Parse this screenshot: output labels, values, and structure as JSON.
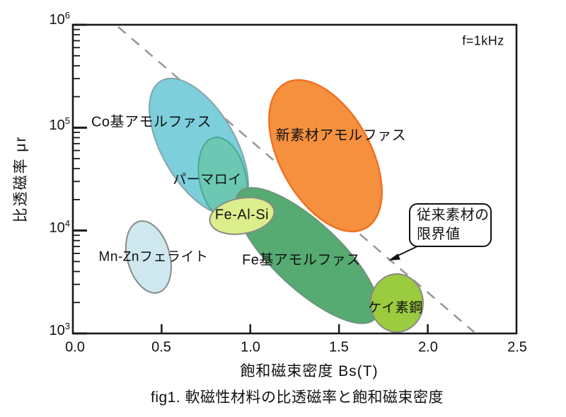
{
  "figure": {
    "caption": "fig1. 軟磁性材料の比透磁率と飽和磁束密度",
    "frequency_note": "f=1kHz",
    "callout": {
      "line1": "従来素材の",
      "line2": "限界値"
    }
  },
  "chart_data": {
    "type": "scatter",
    "title": "fig1. 軟磁性材料の比透磁率と飽和磁束密度",
    "xlabel": "飽和磁束密度 Bs(T)",
    "ylabel": "比透磁率 μr",
    "x_range": [
      0.0,
      2.5
    ],
    "y_range": [
      1000,
      1000000
    ],
    "y_scale": "log",
    "grid": false,
    "legend": "none",
    "x_ticks": [
      "0.0",
      "0.5",
      "1.0",
      "1.5",
      "2.0",
      "2.5"
    ],
    "y_ticks": [
      {
        "base": "10",
        "exp": "6"
      },
      {
        "base": "10",
        "exp": "5"
      },
      {
        "base": "10",
        "exp": "4"
      },
      {
        "base": "10",
        "exp": "3"
      }
    ],
    "condition": "f=1kHz",
    "regions": [
      {
        "label": "Co基アモルファス",
        "bs_range": [
          0.43,
          0.99
        ],
        "mu_range": [
          15000,
          290000
        ],
        "fill": "#7ccfdb",
        "stroke": "#84a4ab"
      },
      {
        "label": "パーマロイ",
        "bs_range": [
          0.69,
          0.98
        ],
        "mu_range": [
          13000,
          79000
        ],
        "fill": "#6cc8b2",
        "stroke": "#4ba893"
      },
      {
        "label": "Fe-Al-Si",
        "bs_range": [
          0.77,
          1.14
        ],
        "mu_range": [
          9000,
          20000
        ],
        "fill": "#dcee8b",
        "stroke": "#8a8a8a"
      },
      {
        "label": "Mn-Znフェライト",
        "bs_range": [
          0.31,
          0.57
        ],
        "mu_range": [
          2400,
          12000
        ],
        "fill": "#cfe8f0",
        "stroke": "#8a8a8a"
      },
      {
        "label": "Fe基アモルファス",
        "bs_range": [
          0.92,
          1.72
        ],
        "mu_range": [
          1500,
          26000
        ],
        "fill": "#55ab71",
        "stroke": "#6f947c"
      },
      {
        "label": "新素材アモルファス",
        "bs_range": [
          1.11,
          1.73
        ],
        "mu_range": [
          9700,
          290000
        ],
        "fill": "#f5913e",
        "stroke": "#f26f21"
      },
      {
        "label": "ケイ素鋼",
        "bs_range": [
          1.68,
          1.97
        ],
        "mu_range": [
          1000,
          3700
        ],
        "fill": "#9bcb3e",
        "stroke": "#8a8a8a"
      }
    ],
    "limit_line": {
      "label": "従来素材の限界値",
      "style": "dashed",
      "color": "#999999",
      "x": [
        0.26,
        2.26
      ],
      "y": [
        950000,
        1000
      ]
    }
  }
}
